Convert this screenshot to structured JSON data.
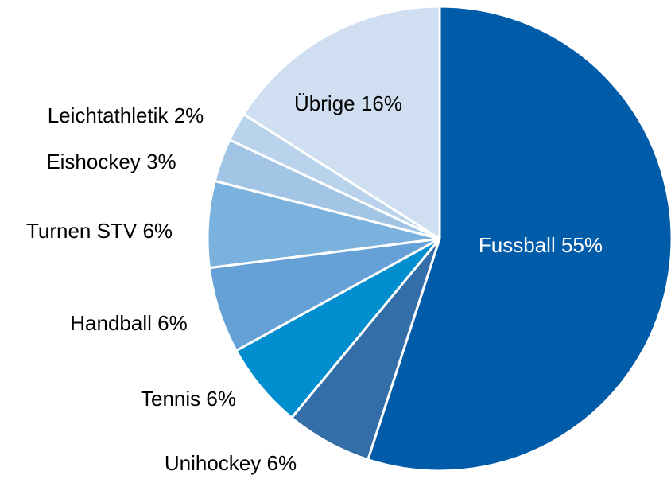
{
  "chart_data": {
    "type": "pie",
    "categories": [
      "Fussball",
      "Unihockey",
      "Tennis",
      "Handball",
      "Turnen STV",
      "Eishockey",
      "Leichtathletik",
      "Übrige"
    ],
    "values": [
      55,
      6,
      6,
      6,
      6,
      3,
      2,
      16
    ],
    "value_labels": [
      "55%",
      "6%",
      "6%",
      "6%",
      "6%",
      "3%",
      "2%",
      "16%"
    ],
    "colors": [
      "#005ca9",
      "#346ea9",
      "#008ecf",
      "#65a0d6",
      "#7ab2dd",
      "#a2c5e6",
      "#b9d3ec",
      "#cfdef0"
    ]
  }
}
